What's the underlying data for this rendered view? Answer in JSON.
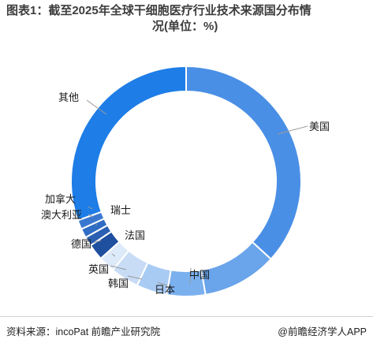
{
  "title": {
    "line1": "图表1：截至2025年全球干细胞医疗行业技术来源国分布情",
    "line2": "况(单位：%)"
  },
  "chart_data": {
    "type": "pie",
    "variant": "donut",
    "title": "图表1：截至2025年全球干细胞医疗行业技术来源国分布情况(单位：%)",
    "unit": "%",
    "categories": [
      "美国",
      "中国",
      "日本",
      "韩国",
      "英国",
      "法国",
      "德国",
      "瑞士",
      "澳大利亚",
      "加拿大",
      "其他"
    ],
    "values": [
      36.8,
      10.5,
      5.4,
      4.3,
      4.0,
      2.3,
      2.3,
      1.3,
      1.3,
      1.3,
      30.5
    ],
    "colors": [
      "#4a8fe6",
      "#6aa4ea",
      "#7ab0ee",
      "#a8cbf3",
      "#c8dcf6",
      "#dceaf9",
      "#1f4f9f",
      "#2a5fb2",
      "#2f6cc4",
      "#3a78d0",
      "#1e7de6"
    ]
  },
  "footer": {
    "source": "资料来源：incoPat 前瞻产业研究院",
    "brand": "@前瞻经济学人APP"
  }
}
